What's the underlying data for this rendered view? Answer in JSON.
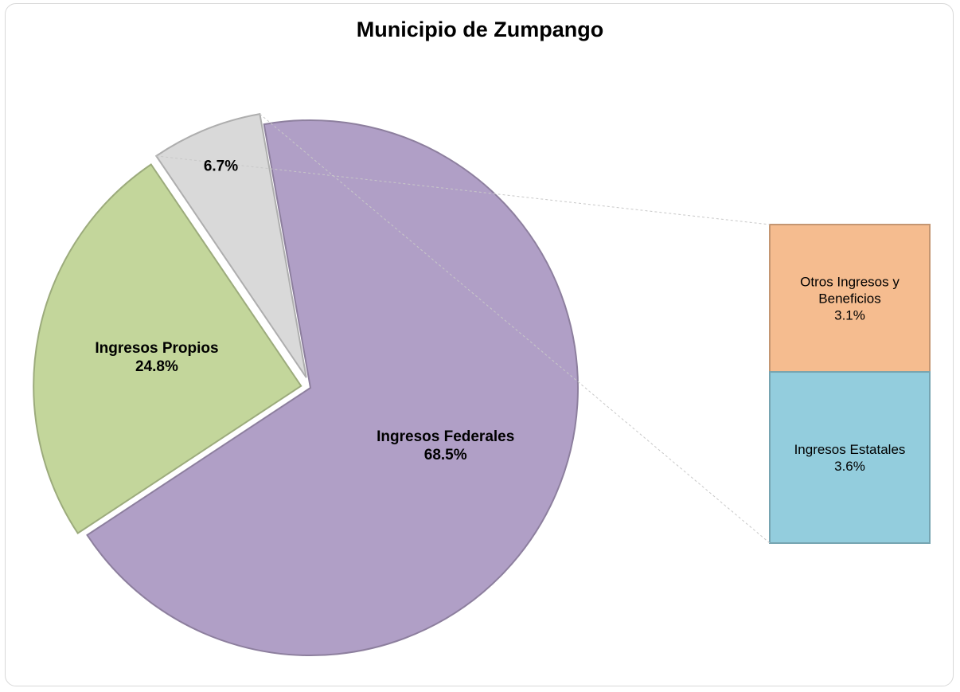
{
  "chart_data": {
    "type": "pie",
    "title": "Municipio de Zumpango",
    "categories": [
      "Ingresos Federales",
      "Ingresos Propios",
      null
    ],
    "values": [
      68.5,
      24.8,
      6.7
    ],
    "value_labels": [
      "68.5%",
      "24.8%",
      "6.7%"
    ],
    "colors": [
      "#b09fc6",
      "#c3d69b",
      "#d9d9d9"
    ],
    "breakdown": {
      "categories": [
        "Otros Ingresos y Beneficios",
        "Ingresos Estatales"
      ],
      "values": [
        3.1,
        3.6
      ],
      "value_labels": [
        "3.1%",
        "3.6%"
      ],
      "colors": [
        "#f5bc8f",
        "#93cddd"
      ]
    }
  }
}
